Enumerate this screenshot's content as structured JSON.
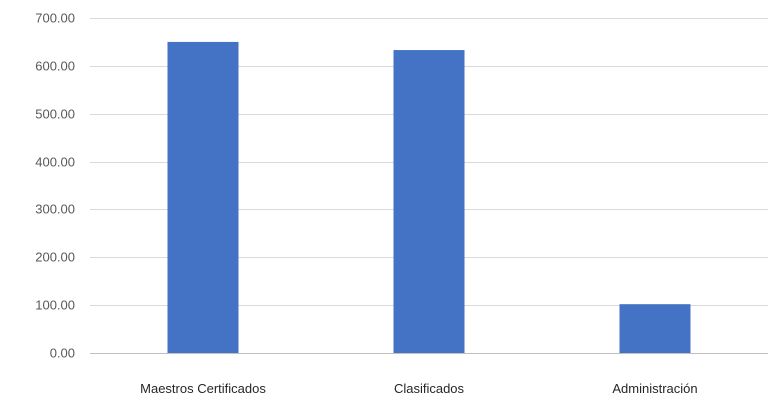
{
  "chart_data": {
    "type": "bar",
    "categories": [
      "Maestros Certificados",
      "Clasificados",
      "Administración"
    ],
    "values": [
      650,
      633,
      102
    ],
    "ylim": [
      0,
      700
    ],
    "yticks": [
      "0.00",
      "100.00",
      "200.00",
      "300.00",
      "400.00",
      "500.00",
      "600.00",
      "700.00"
    ],
    "ytick_values": [
      0,
      100,
      200,
      300,
      400,
      500,
      600,
      700
    ],
    "grid": true,
    "bar_color": "#4472c4",
    "gridline_color": "#d9d9d9"
  }
}
